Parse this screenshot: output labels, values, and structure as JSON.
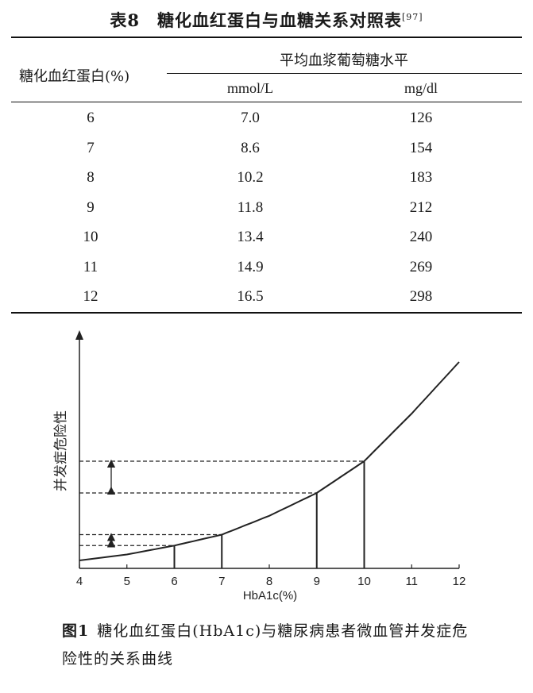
{
  "table": {
    "title": "表8　糖化血红蛋白与血糖关系对照表",
    "ref": "[97]",
    "col1_header": "糖化血红蛋白(%)",
    "group_header": "平均血浆葡萄糖水平",
    "unit1": "mmol/L",
    "unit2": "mg/dl",
    "rows": [
      [
        "6",
        "7.0",
        "126"
      ],
      [
        "7",
        "8.6",
        "154"
      ],
      [
        "8",
        "10.2",
        "183"
      ],
      [
        "9",
        "11.8",
        "212"
      ],
      [
        "10",
        "13.4",
        "240"
      ],
      [
        "11",
        "14.9",
        "269"
      ],
      [
        "12",
        "16.5",
        "298"
      ]
    ]
  },
  "figure": {
    "caption_label": "图1",
    "caption_text": "糖化血红蛋白(HbA1c)与糖尿病患者微血管并发症危险性的关系曲线",
    "ylabel": "并发症危险性",
    "xlabel": "HbA1c(%)",
    "x_ticks": [
      "4",
      "5",
      "6",
      "7",
      "8",
      "9",
      "10",
      "11",
      "12"
    ]
  },
  "chart_data": {
    "type": "line",
    "xlabel": "HbA1c(%)",
    "ylabel": "并发症危险性",
    "xlim": [
      4,
      12
    ],
    "x_ticks": [
      4,
      5,
      6,
      7,
      8,
      9,
      10,
      11,
      12
    ],
    "curve": {
      "x": [
        4,
        5,
        6,
        7,
        8,
        9,
        10,
        11,
        12
      ],
      "y": [
        0.0,
        0.3,
        0.75,
        1.3,
        2.25,
        3.4,
        5.0,
        7.4,
        10.0
      ]
    },
    "markers_x": [
      6,
      7,
      9,
      10
    ],
    "arrow_pairs": [
      [
        6,
        7
      ],
      [
        9,
        10
      ]
    ]
  }
}
